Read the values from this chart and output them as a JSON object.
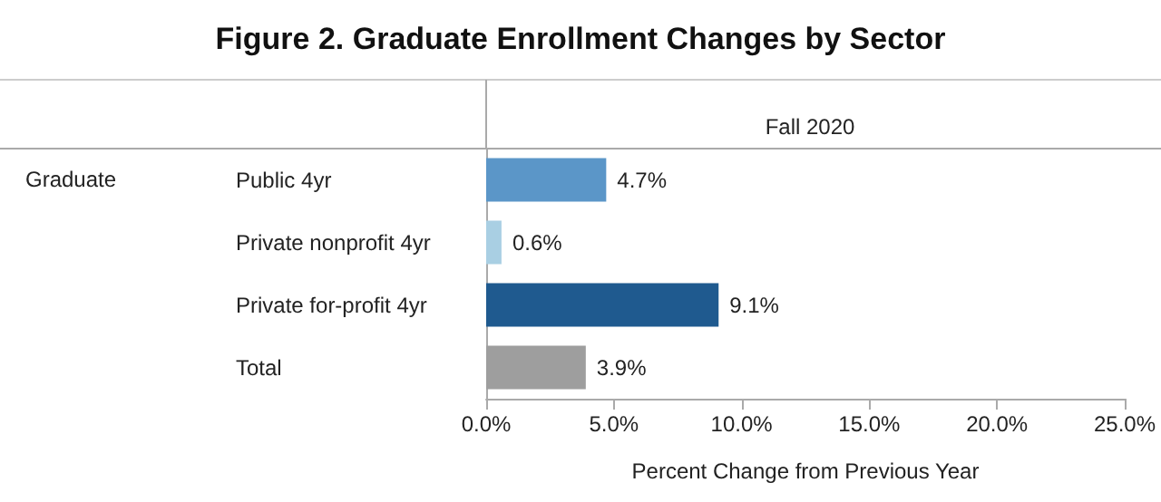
{
  "chart_data": {
    "type": "bar",
    "orientation": "horizontal",
    "title": "Figure 2. Graduate Enrollment Changes by Sector",
    "subtitle": "Fall 2020",
    "xlabel": "Percent Change from Previous Year",
    "annotations": [
      "Graduate"
    ],
    "categories": [
      "Public 4yr",
      "Private nonprofit 4yr",
      "Private for-profit 4yr",
      "Total"
    ],
    "values": [
      4.7,
      0.6,
      9.1,
      3.9
    ],
    "colors": [
      "#5b96c8",
      "#a9cfe3",
      "#1f5a8f",
      "#9e9e9e"
    ],
    "value_labels": [
      "4.7%",
      "0.6%",
      "9.1%",
      "3.9%"
    ],
    "xlim": [
      0,
      25
    ],
    "xticks": [
      {
        "value": 0,
        "label": "0.0%"
      },
      {
        "value": 5,
        "label": "5.0%"
      },
      {
        "value": 10,
        "label": "10.0%"
      },
      {
        "value": 15,
        "label": "15.0%"
      },
      {
        "value": 20,
        "label": "20.0%"
      },
      {
        "value": 25,
        "label": "25.0%"
      }
    ],
    "grid": false
  }
}
